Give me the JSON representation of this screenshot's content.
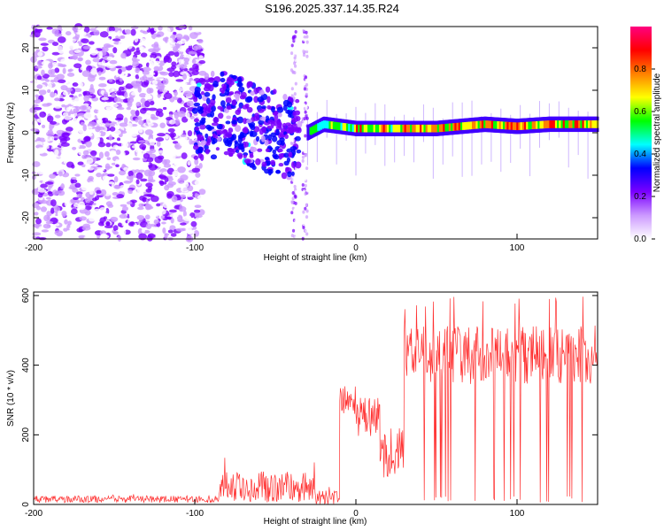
{
  "title": "S196.2025.337.14.35.R24",
  "chart_data": [
    {
      "type": "heatmap",
      "title": "S196.2025.337.14.35.R24",
      "xlabel": "Height of straight line (km)",
      "ylabel": "Frequency (Hz)",
      "xlim": [
        -200,
        150
      ],
      "ylim": [
        -25,
        25
      ],
      "x_ticks": [
        -200,
        -100,
        0,
        100
      ],
      "y_ticks": [
        -20,
        -10,
        0,
        10,
        20
      ],
      "colorbar": {
        "label": "Normalized spectral amplitude",
        "range": [
          0.0,
          1.0
        ],
        "ticks": [
          "0.0",
          "0.2",
          "0.4",
          "0.6",
          "0.8"
        ],
        "tick_values": [
          0.0,
          0.2,
          0.4,
          0.6,
          0.8
        ],
        "colors": [
          "#ffffff",
          "#cc99ff",
          "#7a00ff",
          "#0000ff",
          "#00ffff",
          "#00ff00",
          "#ffff00",
          "#ff8000",
          "#ff0000",
          "#ff0080"
        ]
      },
      "signal_track": {
        "x": [
          -100,
          -80,
          -60,
          -40,
          -30,
          -20,
          0,
          20,
          50,
          80,
          100,
          120,
          150
        ],
        "frequency": [
          3,
          5,
          1,
          -1,
          0,
          2,
          1,
          1,
          1,
          2,
          1.5,
          2,
          2
        ]
      },
      "noise_region_x": [
        -200,
        -95
      ],
      "noise_stripes_x": [
        -40,
        -30
      ]
    },
    {
      "type": "line",
      "xlabel": "Height of straight line (km)",
      "ylabel": "SNR (10 * v/v)",
      "xlim": [
        -200,
        150
      ],
      "ylim": [
        0,
        610
      ],
      "x_ticks": [
        -200,
        -100,
        0,
        100
      ],
      "y_ticks": [
        0,
        200,
        400,
        600
      ],
      "series": [
        {
          "name": "SNR",
          "color": "#ff0000",
          "segments": [
            {
              "x": [
                -200,
                -85
              ],
              "level": 15,
              "spread": 20
            },
            {
              "x": [
                -85,
                -25
              ],
              "level": 50,
              "spread": 90
            },
            {
              "x": [
                -25,
                -10
              ],
              "level": 20,
              "spread": 40
            },
            {
              "x": [
                -10,
                0
              ],
              "level": 300,
              "spread": 80
            },
            {
              "x": [
                0,
                15
              ],
              "level": 250,
              "spread": 120
            },
            {
              "x": [
                15,
                30
              ],
              "level": 150,
              "spread": 150
            },
            {
              "x": [
                30,
                150
              ],
              "level": 430,
              "spread": 170
            }
          ]
        }
      ]
    }
  ]
}
